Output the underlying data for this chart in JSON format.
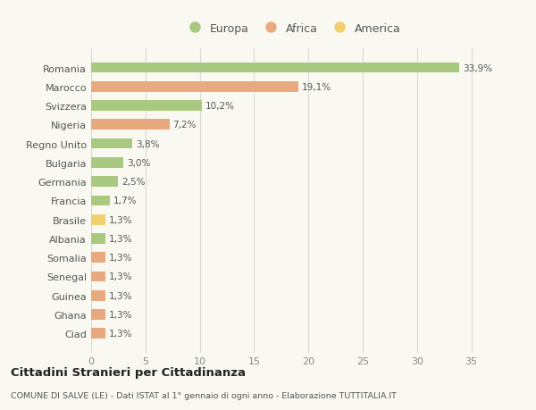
{
  "categories": [
    "Romania",
    "Marocco",
    "Svizzera",
    "Nigeria",
    "Regno Unito",
    "Bulgaria",
    "Germania",
    "Francia",
    "Brasile",
    "Albania",
    "Somalia",
    "Senegal",
    "Guinea",
    "Ghana",
    "Ciad"
  ],
  "values": [
    33.9,
    19.1,
    10.2,
    7.2,
    3.8,
    3.0,
    2.5,
    1.7,
    1.3,
    1.3,
    1.3,
    1.3,
    1.3,
    1.3,
    1.3
  ],
  "labels": [
    "33,9%",
    "19,1%",
    "10,2%",
    "7,2%",
    "3,8%",
    "3,0%",
    "2,5%",
    "1,7%",
    "1,3%",
    "1,3%",
    "1,3%",
    "1,3%",
    "1,3%",
    "1,3%",
    "1,3%"
  ],
  "continents": [
    "Europa",
    "Africa",
    "Europa",
    "Africa",
    "Europa",
    "Europa",
    "Europa",
    "Europa",
    "America",
    "Europa",
    "Africa",
    "Africa",
    "Africa",
    "Africa",
    "Africa"
  ],
  "colors": {
    "Europa": "#a8c97f",
    "Africa": "#e8a97f",
    "America": "#f0d070"
  },
  "legend_items": [
    {
      "label": "Europa",
      "color": "#a8c97f"
    },
    {
      "label": "Africa",
      "color": "#e8a97f"
    },
    {
      "label": "America",
      "color": "#f0d070"
    }
  ],
  "background_color": "#f9f9f2",
  "grid_color": "#d8d8d8",
  "title": "Cittadini Stranieri per Cittadinanza",
  "subtitle": "COMUNE DI SALVE (LE) - Dati ISTAT al 1° gennaio di ogni anno - Elaborazione TUTTITALIA.IT",
  "xlim": [
    0,
    37
  ],
  "xticks": [
    0,
    5,
    10,
    15,
    20,
    25,
    30,
    35
  ]
}
